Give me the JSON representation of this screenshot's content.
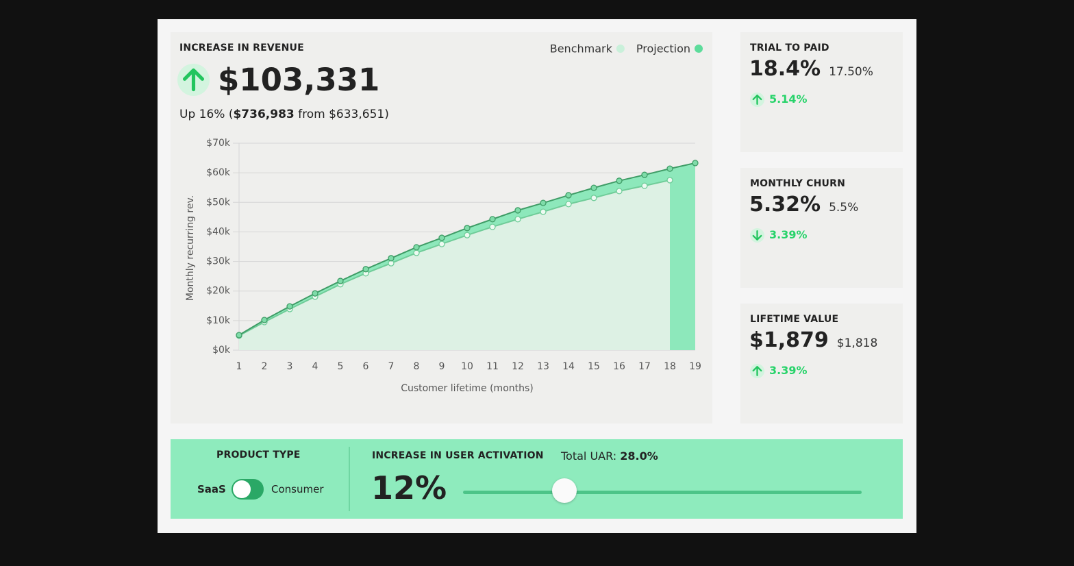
{
  "revenue": {
    "title": "INCREASE IN REVENUE",
    "value": "$103,331",
    "trend": "up",
    "summary_lead": "Up 16% (",
    "summary_new": "$736,983",
    "summary_tail": " from $633,651)"
  },
  "chart_data": {
    "type": "line",
    "x_label": "Customer lifetime (months)",
    "y_label": "Monthly recurring rev.",
    "x": [
      1,
      2,
      3,
      4,
      5,
      6,
      7,
      8,
      9,
      10,
      11,
      12,
      13,
      14,
      15,
      16,
      17,
      18,
      19
    ],
    "xlim": [
      1,
      19
    ],
    "xticks": [
      1,
      2,
      3,
      4,
      5,
      6,
      7,
      8,
      9,
      10,
      11,
      12,
      13,
      14,
      15,
      16,
      17,
      18,
      19
    ],
    "ylim": [
      0,
      70000
    ],
    "yticks": [
      {
        "value": 0,
        "label": "$0k"
      },
      {
        "value": 10000,
        "label": "$10k"
      },
      {
        "value": 20000,
        "label": "$20k"
      },
      {
        "value": 30000,
        "label": "$30k"
      },
      {
        "value": 40000,
        "label": "$40k"
      },
      {
        "value": 50000,
        "label": "$50k"
      },
      {
        "value": 60000,
        "label": "$60k"
      },
      {
        "value": 70000,
        "label": "$70k"
      }
    ],
    "grid": true,
    "series": [
      {
        "name": "Benchmark",
        "color": "#c9f0da",
        "values": [
          4900,
          9500,
          13900,
          18100,
          22300,
          26000,
          29400,
          32900,
          35900,
          38900,
          41700,
          44300,
          46800,
          49400,
          51500,
          53800,
          55600,
          57500,
          null
        ]
      },
      {
        "name": "Projection",
        "color": "#5ddc9b",
        "values": [
          5100,
          10200,
          14800,
          19200,
          23400,
          27400,
          31100,
          34800,
          38000,
          41300,
          44300,
          47300,
          49800,
          52400,
          54900,
          57300,
          59300,
          61400,
          63300
        ]
      }
    ]
  },
  "metrics": [
    {
      "title": "TRIAL TO PAID",
      "value": "18.4%",
      "benchmark": "17.50%",
      "change": "5.14%",
      "trend": "up"
    },
    {
      "title": "MONTHLY CHURN",
      "value": "5.32%",
      "benchmark": "5.5%",
      "change": "3.39%",
      "trend": "down"
    },
    {
      "title": "LIFETIME VALUE",
      "value": "$1,879",
      "benchmark": "$1,818",
      "change": "3.39%",
      "trend": "up"
    }
  ],
  "controls": {
    "product_type": {
      "title": "PRODUCT TYPE",
      "options": [
        "SaaS",
        "Consumer"
      ]
    },
    "activation": {
      "title": "INCREASE IN USER ACTIVATION",
      "total_label": "Total UAR:",
      "total_value": "28.0%",
      "value": "12%"
    }
  }
}
